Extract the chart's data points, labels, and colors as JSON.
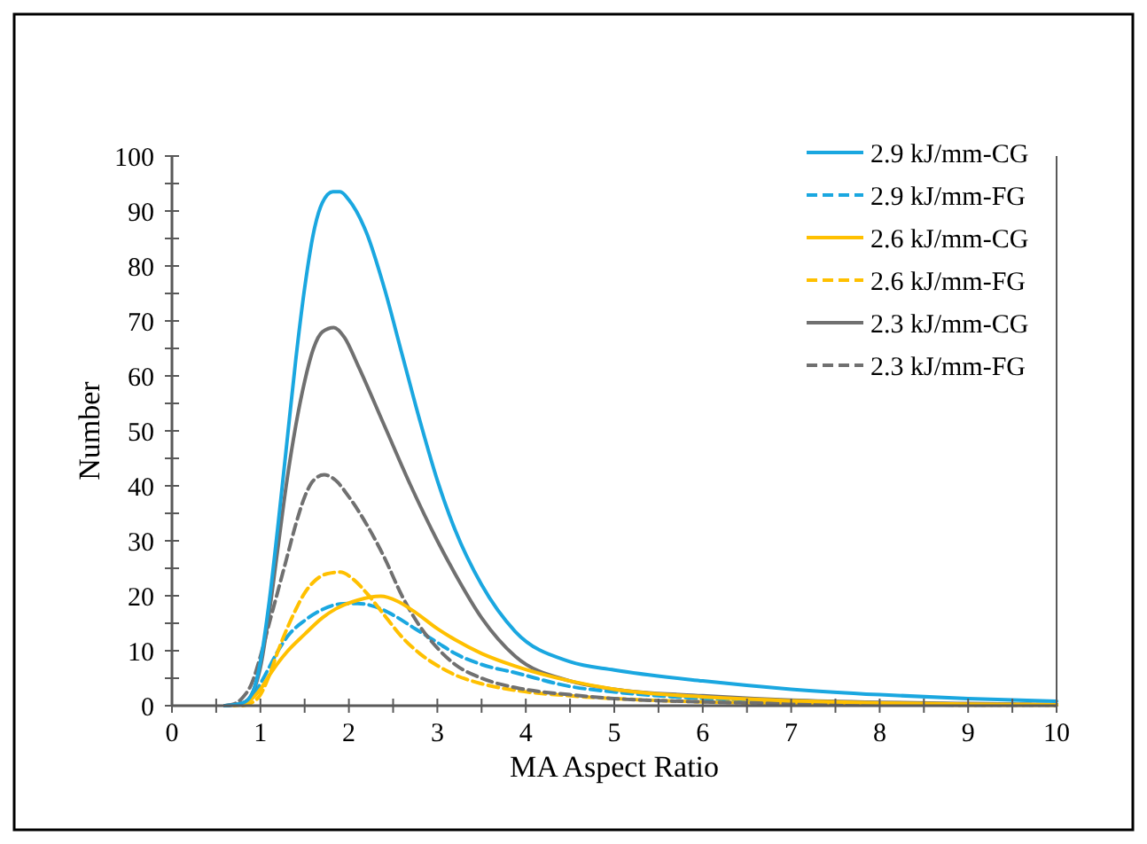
{
  "chart_data": {
    "type": "line",
    "xlabel": "MA Aspect Ratio",
    "ylabel": "Number",
    "xlim": [
      0,
      10
    ],
    "ylim": [
      0,
      100
    ],
    "xticks": [
      0,
      {
        "value": 0.5,
        "label": null
      },
      1,
      {
        "value": 1.5,
        "label": null
      },
      2,
      {
        "value": 2.5,
        "label": null
      },
      3,
      {
        "value": 3.5,
        "label": null
      },
      4,
      {
        "value": 4.5,
        "label": null
      },
      5,
      {
        "value": 5.5,
        "label": null
      },
      6,
      {
        "value": 6.5,
        "label": null
      },
      7,
      {
        "value": 7.5,
        "label": null
      },
      8,
      {
        "value": 8.5,
        "label": null
      },
      9,
      {
        "value": 9.5,
        "label": null
      },
      10
    ],
    "yticks": [
      0,
      {
        "value": 5,
        "label": null
      },
      10,
      {
        "value": 15,
        "label": null
      },
      20,
      {
        "value": 25,
        "label": null
      },
      30,
      {
        "value": 35,
        "label": null
      },
      40,
      {
        "value": 45,
        "label": null
      },
      50,
      {
        "value": 55,
        "label": null
      },
      60,
      {
        "value": 65,
        "label": null
      },
      70,
      {
        "value": 75,
        "label": null
      },
      80,
      {
        "value": 85,
        "label": null
      },
      90,
      {
        "value": 95,
        "label": null
      },
      100
    ],
    "grid": false,
    "legend": "top right",
    "marker": "none",
    "series": [
      {
        "name": "2.9 kJ/mm-CG",
        "color": "#1aa7e0",
        "line_style": "solid",
        "x": [
          0.6,
          0.8,
          0.9,
          1.0,
          1.1,
          1.2,
          1.3,
          1.4,
          1.5,
          1.6,
          1.7,
          1.82,
          1.9,
          2.0,
          2.2,
          2.4,
          2.6,
          2.8,
          3.0,
          3.2,
          3.5,
          3.88,
          4.5,
          5,
          6,
          7,
          8,
          9,
          10
        ],
        "values": [
          0,
          0.5,
          2,
          8,
          19,
          33,
          48,
          63,
          76,
          86,
          91.5,
          93.5,
          93.5,
          92,
          86,
          76,
          64,
          52,
          41,
          32,
          22,
          13.5,
          8,
          6.5,
          4.5,
          3,
          2,
          1.3,
          0.8
        ]
      },
      {
        "name": "2.9 kJ/mm-FG",
        "color": "#1aa7e0",
        "line_style": "dashed",
        "x": [
          0.6,
          0.8,
          0.9,
          1.0,
          1.1,
          1.2,
          1.3,
          1.5,
          1.7,
          1.9,
          2.1,
          2.3,
          2.5,
          2.75,
          3.0,
          3.2,
          3.5,
          3.88,
          4.5,
          5,
          6,
          7,
          8,
          9,
          10
        ],
        "values": [
          0,
          0.5,
          1.5,
          4,
          7,
          10,
          12.5,
          15.5,
          17.5,
          18.5,
          18.6,
          18,
          16.5,
          14,
          11.5,
          9.5,
          7.5,
          6,
          3.5,
          2.5,
          1.3,
          0.8,
          0.5,
          0.3,
          0.2
        ]
      },
      {
        "name": "2.6 kJ/mm-CG",
        "color": "#ffc000",
        "line_style": "solid",
        "x": [
          0.7,
          0.8,
          0.9,
          1.0,
          1.1,
          1.2,
          1.3,
          1.5,
          1.7,
          1.85,
          2.1,
          2.36,
          2.55,
          2.75,
          3.0,
          3.2,
          3.5,
          3.88,
          4.5,
          5,
          6,
          7,
          8,
          9,
          10
        ],
        "values": [
          0,
          0.3,
          1.2,
          3,
          5.5,
          7.8,
          9.8,
          13,
          16,
          17.6,
          19.2,
          19.9,
          19,
          17,
          14,
          12,
          9.5,
          7.2,
          4.5,
          3,
          1.6,
          0.9,
          0.5,
          0.3,
          0.2
        ]
      },
      {
        "name": "2.6 kJ/mm-FG",
        "color": "#ffc000",
        "line_style": "dashed",
        "x": [
          0.8,
          0.9,
          1.0,
          1.1,
          1.2,
          1.3,
          1.4,
          1.5,
          1.6,
          1.75,
          1.9,
          2.05,
          2.2,
          2.4,
          2.6,
          2.8,
          3.0,
          3.2,
          3.5,
          3.88,
          4.5,
          5,
          6,
          7,
          8,
          10
        ],
        "values": [
          0,
          0.5,
          2,
          5.5,
          10,
          14,
          17.5,
          20.5,
          22.5,
          24,
          24.3,
          23,
          20.5,
          16.5,
          12.5,
          9.5,
          7.3,
          5.6,
          4,
          2.8,
          1.8,
          1.3,
          0.7,
          0.4,
          0.2,
          0.1
        ]
      },
      {
        "name": "2.3 kJ/mm-CG",
        "color": "#707070",
        "line_style": "solid",
        "x": [
          0.6,
          0.8,
          0.9,
          1.0,
          1.1,
          1.2,
          1.3,
          1.4,
          1.5,
          1.6,
          1.7,
          1.83,
          1.95,
          2.1,
          2.4,
          2.7,
          3.0,
          3.2,
          3.5,
          3.88,
          4.5,
          5,
          6,
          7,
          8,
          9,
          10
        ],
        "values": [
          0,
          0.5,
          2,
          7,
          17,
          29,
          41,
          51,
          59,
          65,
          68,
          68.8,
          67,
          62,
          51,
          40,
          30,
          24,
          16,
          9,
          4.5,
          3,
          1.8,
          1,
          0.6,
          0.4,
          0.2
        ]
      },
      {
        "name": "2.3 kJ/mm-FG",
        "color": "#707070",
        "line_style": "dashed",
        "x": [
          0.6,
          0.7,
          0.8,
          0.9,
          1.0,
          1.1,
          1.2,
          1.3,
          1.4,
          1.5,
          1.6,
          1.72,
          1.85,
          2.0,
          2.2,
          2.4,
          2.6,
          2.8,
          3.0,
          3.2,
          3.5,
          3.88,
          4.5,
          5,
          6,
          7,
          8,
          10
        ],
        "values": [
          0,
          0.3,
          1.5,
          4,
          9,
          15,
          21,
          27,
          33,
          38,
          41,
          42,
          41,
          38,
          33,
          27,
          20,
          14.5,
          10.5,
          7.5,
          5,
          3.3,
          2,
          1.3,
          0.7,
          0.4,
          0.2,
          0.1
        ]
      }
    ]
  }
}
